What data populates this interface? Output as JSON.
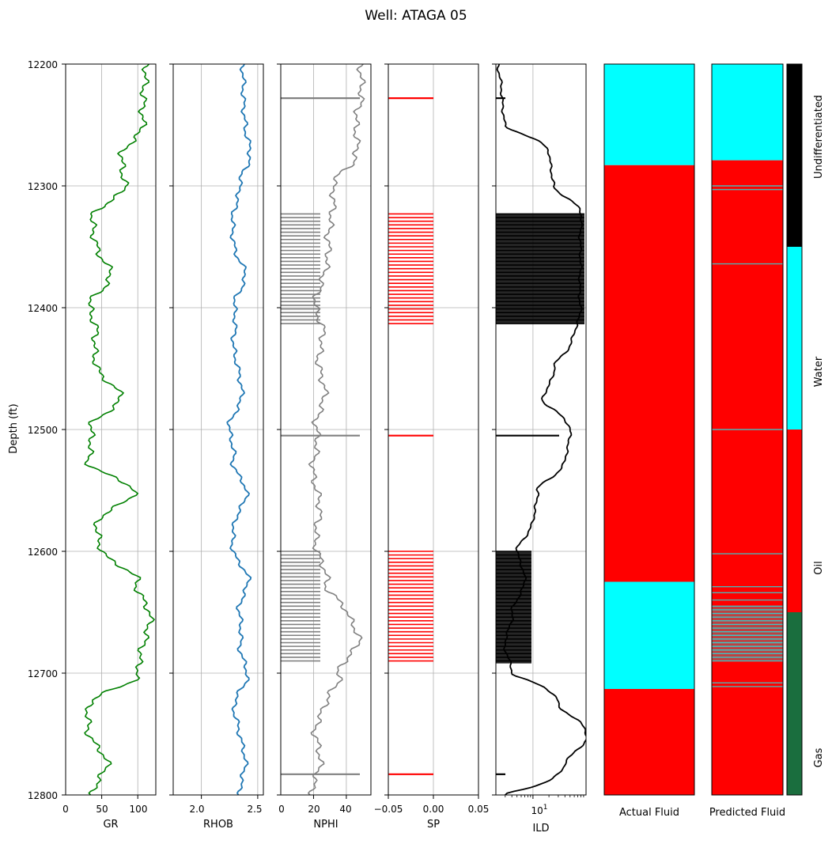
{
  "title": "Well: ATAGA 05",
  "ylabel": "Depth (ft)",
  "depth_ticks": [
    "12200",
    "12300",
    "12400",
    "12500",
    "12600",
    "12700",
    "12800"
  ],
  "tracks": {
    "gr": {
      "label": "GR",
      "ticks": [
        "0",
        "50",
        "100"
      ],
      "color": "#008000"
    },
    "rhob": {
      "label": "RHOB",
      "ticks": [
        "2.0",
        "2.5"
      ],
      "color": "#1f77b4"
    },
    "nphi": {
      "label": "NPHI",
      "ticks": [
        "0",
        "20",
        "40"
      ],
      "color": "#808080"
    },
    "sp": {
      "label": "SP",
      "ticks": [
        "−0.05",
        "0.00",
        "0.05"
      ],
      "color": "#ff0000"
    },
    "ild": {
      "label": "ILD",
      "tick": "10",
      "tick_exp": "1",
      "color": "#000000"
    },
    "actual": {
      "label": "Actual Fluid"
    },
    "predicted": {
      "label": "Predicted Fluid"
    }
  },
  "legend": [
    {
      "label": "Undifferentiated",
      "color": "#000000"
    },
    {
      "label": "Water",
      "color": "#00ffff"
    },
    {
      "label": "Oil",
      "color": "#ff0000"
    },
    {
      "label": "Gas",
      "color": "#1a6e3e"
    }
  ],
  "chart_data": {
    "type": "line",
    "title": "Well: ATAGA 05",
    "ylabel": "Depth (ft)",
    "ylim": [
      12800,
      12200
    ],
    "grid": true,
    "depth": [
      12200,
      12225,
      12250,
      12275,
      12300,
      12325,
      12350,
      12375,
      12400,
      12425,
      12450,
      12475,
      12500,
      12525,
      12550,
      12575,
      12600,
      12625,
      12650,
      12675,
      12700,
      12725,
      12750,
      12775,
      12800
    ],
    "series": [
      {
        "name": "GR",
        "xlim": [
          0,
          125
        ],
        "values": [
          115,
          105,
          110,
          75,
          85,
          35,
          45,
          60,
          35,
          40,
          45,
          75,
          35,
          30,
          95,
          45,
          50,
          100,
          115,
          110,
          100,
          35,
          30,
          60,
          35
        ]
      },
      {
        "name": "RHOB",
        "xlim": [
          1.75,
          2.55
        ],
        "values": [
          2.38,
          2.36,
          2.4,
          2.42,
          2.35,
          2.27,
          2.3,
          2.38,
          2.3,
          2.28,
          2.33,
          2.35,
          2.25,
          2.28,
          2.4,
          2.3,
          2.28,
          2.42,
          2.33,
          2.35,
          2.4,
          2.3,
          2.33,
          2.4,
          2.33
        ]
      },
      {
        "name": "NPHI",
        "xlim": [
          0,
          55
        ],
        "values": [
          50,
          48,
          47,
          45,
          33,
          30,
          30,
          25,
          22,
          25,
          24,
          26,
          22,
          20,
          22,
          23,
          22,
          28,
          40,
          48,
          35,
          28,
          20,
          25,
          18
        ]
      },
      {
        "name": "ILD",
        "xlim": [
          2,
          100
        ],
        "log": true,
        "values": [
          2.3,
          2.5,
          3,
          20,
          25,
          80,
          80,
          75,
          80,
          55,
          25,
          15,
          50,
          40,
          12,
          10,
          5,
          7,
          4,
          3,
          4,
          30,
          100,
          40,
          3
        ]
      }
    ],
    "shading": [
      {
        "track": "NPHI",
        "from": 12323,
        "to": 12413,
        "color": "#808080"
      },
      {
        "track": "NPHI",
        "from": 12600,
        "to": 12692,
        "color": "#808080"
      },
      {
        "track": "SP",
        "from": 12323,
        "to": 12413,
        "color": "#ff0000"
      },
      {
        "track": "SP",
        "from": 12600,
        "to": 12692,
        "color": "#ff0000"
      },
      {
        "track": "ILD",
        "from": 12323,
        "to": 12413,
        "color": "#000000"
      },
      {
        "track": "ILD",
        "from": 12600,
        "to": 12692,
        "color": "#000000"
      }
    ],
    "actual_fluid": [
      {
        "from": 12200,
        "to": 12283,
        "label": "Water"
      },
      {
        "from": 12283,
        "to": 12625,
        "label": "Oil"
      },
      {
        "from": 12625,
        "to": 12713,
        "label": "Water"
      },
      {
        "from": 12713,
        "to": 12800,
        "label": "Oil"
      }
    ],
    "predicted_fluid": [
      {
        "from": 12200,
        "to": 12279,
        "label": "Water"
      },
      {
        "from": 12279,
        "to": 12800,
        "label": "Oil"
      }
    ]
  }
}
